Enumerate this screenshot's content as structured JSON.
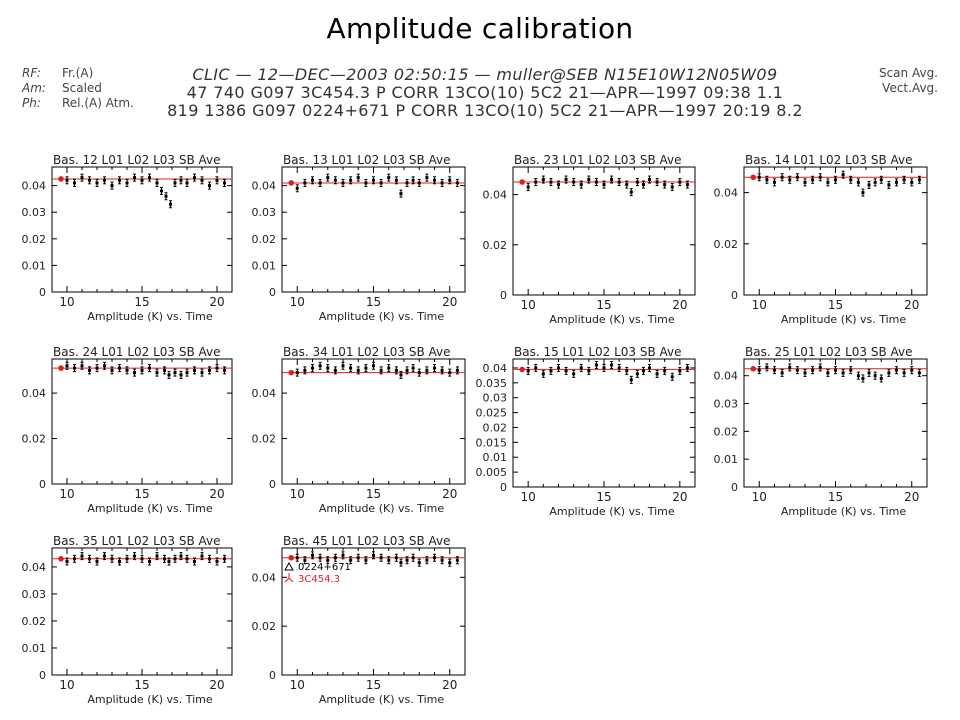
{
  "page": {
    "title": "Amplitude calibration"
  },
  "header": {
    "left": [
      {
        "key": "RF:",
        "value": "Fr.(A)"
      },
      {
        "key": "Am:",
        "value": "Scaled"
      },
      {
        "key": "Ph:",
        "value": "Rel.(A) Atm."
      }
    ],
    "center": [
      "CLIC — 12—DEC—2003 02:50:15 — muller@SEB   N15E10W12N05W09",
      "47 740 G097 3C454.3 P CORR 13CO(10) 5C2 21—APR—1997 09:38 1.1",
      "819 1386 G097 0224+671 P CORR 13CO(10) 5C2 21—APR—1997 20:19 8.2"
    ],
    "right": [
      "Scan Avg.",
      "Vect.Avg."
    ]
  },
  "legend": [
    {
      "symbol": "triangle",
      "label": "0224+671",
      "color": "#000000"
    },
    {
      "symbol": "star",
      "label": "3C454.3",
      "color": "#e02020"
    }
  ],
  "colors": {
    "data": "#000000",
    "calibrator": "#e02020",
    "frame": "#000000"
  },
  "chart_data": [
    {
      "type": "scatter",
      "title": "Bas. 12 L01 L02 L03  SB Ave",
      "xlabel": "Amplitude (K)  vs.  Time",
      "xlim": [
        9,
        21
      ],
      "ylim": [
        0,
        0.047
      ],
      "xticks": [
        10,
        15,
        20
      ],
      "yticks": [
        0,
        0.01,
        0.02,
        0.03,
        0.04
      ],
      "yticklabels": [
        "0",
        "0.01",
        "0.02",
        "0.03",
        "0.04"
      ],
      "ref_y": 0.0425,
      "x": [
        10.0,
        10.5,
        11.0,
        11.5,
        12.0,
        12.5,
        13.0,
        13.5,
        14.0,
        14.5,
        15.0,
        15.5,
        16.0,
        16.3,
        16.6,
        16.9,
        17.2,
        17.6,
        18.0,
        18.5,
        19.0,
        19.5,
        20.0,
        20.5
      ],
      "y": [
        0.042,
        0.041,
        0.043,
        0.042,
        0.041,
        0.042,
        0.04,
        0.042,
        0.041,
        0.043,
        0.042,
        0.043,
        0.041,
        0.038,
        0.036,
        0.033,
        0.041,
        0.042,
        0.041,
        0.043,
        0.042,
        0.04,
        0.042,
        0.041
      ]
    },
    {
      "type": "scatter",
      "title": "Bas. 13 L01 L02 L03  SB Ave",
      "xlabel": "Amplitude (K)  vs.  Time",
      "xlim": [
        9,
        21
      ],
      "ylim": [
        0,
        0.047
      ],
      "xticks": [
        10,
        15,
        20
      ],
      "yticks": [
        0,
        0.01,
        0.02,
        0.03,
        0.04
      ],
      "yticklabels": [
        "0",
        "0.01",
        "0.02",
        "0.03",
        "0.04"
      ],
      "ref_y": 0.041,
      "x": [
        10.0,
        10.5,
        11.0,
        11.5,
        12.0,
        12.5,
        13.0,
        13.5,
        14.0,
        14.5,
        15.0,
        15.5,
        16.0,
        16.5,
        16.8,
        17.2,
        17.6,
        18.0,
        18.5,
        19.0,
        19.5,
        20.0,
        20.5
      ],
      "y": [
        0.039,
        0.041,
        0.042,
        0.041,
        0.043,
        0.042,
        0.041,
        0.042,
        0.043,
        0.041,
        0.042,
        0.041,
        0.043,
        0.042,
        0.037,
        0.041,
        0.042,
        0.041,
        0.043,
        0.042,
        0.041,
        0.042,
        0.041
      ]
    },
    {
      "type": "scatter",
      "title": "Bas. 23 L01 L02 L03  SB Ave",
      "xlabel": "Amplitude (K)  vs.  Time",
      "xlim": [
        9,
        21
      ],
      "ylim": [
        0,
        0.051
      ],
      "xticks": [
        10,
        15,
        20
      ],
      "yticks": [
        0,
        0.02,
        0.04
      ],
      "yticklabels": [
        "0",
        "0.02",
        "0.04"
      ],
      "ref_y": 0.045,
      "x": [
        10.0,
        10.5,
        11.0,
        11.5,
        12.0,
        12.5,
        13.0,
        13.5,
        14.0,
        14.5,
        15.0,
        15.5,
        16.0,
        16.5,
        16.8,
        17.2,
        17.6,
        18.0,
        18.5,
        19.0,
        19.5,
        20.0,
        20.5
      ],
      "y": [
        0.043,
        0.045,
        0.046,
        0.045,
        0.044,
        0.046,
        0.045,
        0.044,
        0.046,
        0.045,
        0.044,
        0.046,
        0.045,
        0.044,
        0.041,
        0.045,
        0.044,
        0.046,
        0.045,
        0.044,
        0.043,
        0.045,
        0.044
      ]
    },
    {
      "type": "scatter",
      "title": "Bas. 14 L01 L02 L03  SB Ave",
      "xlabel": "Amplitude (K)  vs.  Time",
      "xlim": [
        9,
        21
      ],
      "ylim": [
        0,
        0.05
      ],
      "xticks": [
        10,
        15,
        20
      ],
      "yticks": [
        0,
        0.02,
        0.04
      ],
      "yticklabels": [
        "0",
        "0.02",
        "0.04"
      ],
      "ref_y": 0.046,
      "x": [
        10.0,
        10.5,
        11.0,
        11.5,
        12.0,
        12.5,
        13.0,
        13.5,
        14.0,
        14.5,
        15.0,
        15.5,
        16.0,
        16.5,
        16.8,
        17.2,
        17.6,
        18.0,
        18.5,
        19.0,
        19.5,
        20.0,
        20.5
      ],
      "y": [
        0.046,
        0.045,
        0.044,
        0.046,
        0.045,
        0.046,
        0.044,
        0.045,
        0.046,
        0.044,
        0.045,
        0.047,
        0.045,
        0.044,
        0.04,
        0.043,
        0.044,
        0.045,
        0.043,
        0.044,
        0.045,
        0.044,
        0.045
      ]
    },
    {
      "type": "scatter",
      "title": "Bas. 24 L01 L02 L03  SB Ave",
      "xlabel": "Amplitude (K)  vs.  Time",
      "xlim": [
        9,
        21
      ],
      "ylim": [
        0,
        0.055
      ],
      "xticks": [
        10,
        15,
        20
      ],
      "yticks": [
        0,
        0.02,
        0.04
      ],
      "yticklabels": [
        "0",
        "0.02",
        "0.04"
      ],
      "ref_y": 0.051,
      "x": [
        10.0,
        10.5,
        11.0,
        11.5,
        12.0,
        12.5,
        13.0,
        13.5,
        14.0,
        14.5,
        15.0,
        15.5,
        16.0,
        16.5,
        16.8,
        17.2,
        17.6,
        18.0,
        18.5,
        19.0,
        19.5,
        20.0,
        20.5
      ],
      "y": [
        0.052,
        0.051,
        0.052,
        0.05,
        0.051,
        0.052,
        0.05,
        0.051,
        0.05,
        0.049,
        0.05,
        0.051,
        0.049,
        0.05,
        0.048,
        0.049,
        0.048,
        0.049,
        0.05,
        0.049,
        0.05,
        0.051,
        0.05
      ]
    },
    {
      "type": "scatter",
      "title": "Bas. 34 L01 L02 L03  SB Ave",
      "xlabel": "Amplitude (K)  vs.  Time",
      "xlim": [
        9,
        21
      ],
      "ylim": [
        0,
        0.055
      ],
      "xticks": [
        10,
        15,
        20
      ],
      "yticks": [
        0,
        0.02,
        0.04
      ],
      "yticklabels": [
        "0",
        "0.02",
        "0.04"
      ],
      "ref_y": 0.049,
      "x": [
        10.0,
        10.5,
        11.0,
        11.5,
        12.0,
        12.5,
        13.0,
        13.5,
        14.0,
        14.5,
        15.0,
        15.5,
        16.0,
        16.5,
        16.8,
        17.2,
        17.6,
        18.0,
        18.5,
        19.0,
        19.5,
        20.0,
        20.5
      ],
      "y": [
        0.049,
        0.05,
        0.051,
        0.052,
        0.051,
        0.05,
        0.052,
        0.051,
        0.05,
        0.051,
        0.052,
        0.05,
        0.051,
        0.05,
        0.048,
        0.05,
        0.051,
        0.049,
        0.05,
        0.051,
        0.05,
        0.049,
        0.05
      ]
    },
    {
      "type": "scatter",
      "title": "Bas. 15 L01 L02 L03  SB Ave",
      "xlabel": "Amplitude (K)  vs.  Time",
      "xlim": [
        9,
        21
      ],
      "ylim": [
        0,
        0.043
      ],
      "xticks": [
        10,
        15,
        20
      ],
      "yticks": [
        0,
        0.005,
        0.01,
        0.015,
        0.02,
        0.025,
        0.03,
        0.035,
        0.04
      ],
      "yticklabels": [
        "0",
        "0.005",
        "0.01",
        "0.015",
        "0.02",
        "0.025",
        "0.03",
        "0.035",
        "0.04"
      ],
      "ref_y": 0.0395,
      "x": [
        10.0,
        10.5,
        11.0,
        11.5,
        12.0,
        12.5,
        13.0,
        13.5,
        14.0,
        14.5,
        15.0,
        15.5,
        16.0,
        16.5,
        16.8,
        17.2,
        17.6,
        18.0,
        18.5,
        19.0,
        19.5,
        20.0,
        20.5
      ],
      "y": [
        0.039,
        0.04,
        0.038,
        0.039,
        0.04,
        0.039,
        0.038,
        0.04,
        0.039,
        0.041,
        0.04,
        0.041,
        0.04,
        0.039,
        0.036,
        0.038,
        0.039,
        0.04,
        0.038,
        0.039,
        0.037,
        0.039,
        0.04
      ]
    },
    {
      "type": "scatter",
      "title": "Bas. 25 L01 L02 L03  SB Ave",
      "xlabel": "Amplitude (K)  vs.  Time",
      "xlim": [
        9,
        21
      ],
      "ylim": [
        0,
        0.046
      ],
      "xticks": [
        10,
        15,
        20
      ],
      "yticks": [
        0,
        0.01,
        0.02,
        0.03,
        0.04
      ],
      "yticklabels": [
        "0",
        "0.01",
        "0.02",
        "0.03",
        "0.04"
      ],
      "ref_y": 0.0425,
      "x": [
        10.0,
        10.5,
        11.0,
        11.5,
        12.0,
        12.5,
        13.0,
        13.5,
        14.0,
        14.5,
        15.0,
        15.5,
        16.0,
        16.5,
        16.8,
        17.2,
        17.6,
        18.0,
        18.5,
        19.0,
        19.5,
        20.0,
        20.5
      ],
      "y": [
        0.042,
        0.043,
        0.042,
        0.041,
        0.043,
        0.042,
        0.041,
        0.042,
        0.043,
        0.041,
        0.042,
        0.041,
        0.042,
        0.04,
        0.039,
        0.041,
        0.04,
        0.039,
        0.041,
        0.042,
        0.041,
        0.042,
        0.041
      ]
    },
    {
      "type": "scatter",
      "title": "Bas. 35 L01 L02 L03  SB Ave",
      "xlabel": "Amplitude (K)  vs.  Time",
      "xlim": [
        9,
        21
      ],
      "ylim": [
        0,
        0.047
      ],
      "xticks": [
        10,
        15,
        20
      ],
      "yticks": [
        0,
        0.01,
        0.02,
        0.03,
        0.04
      ],
      "yticklabels": [
        "0",
        "0.01",
        "0.02",
        "0.03",
        "0.04"
      ],
      "ref_y": 0.043,
      "x": [
        10.0,
        10.5,
        11.0,
        11.5,
        12.0,
        12.5,
        13.0,
        13.5,
        14.0,
        14.5,
        15.0,
        15.5,
        16.0,
        16.5,
        16.8,
        17.2,
        17.6,
        18.0,
        18.5,
        19.0,
        19.5,
        20.0,
        20.5
      ],
      "y": [
        0.042,
        0.043,
        0.044,
        0.043,
        0.042,
        0.044,
        0.043,
        0.042,
        0.043,
        0.044,
        0.043,
        0.042,
        0.044,
        0.043,
        0.042,
        0.043,
        0.044,
        0.043,
        0.042,
        0.044,
        0.043,
        0.042,
        0.043
      ]
    },
    {
      "type": "scatter",
      "title": "Bas. 45 L01 L02 L03  SB Ave",
      "xlabel": "Amplitude (K)  vs.  Time",
      "xlim": [
        9,
        21
      ],
      "ylim": [
        0,
        0.052
      ],
      "xticks": [
        10,
        15,
        20
      ],
      "yticks": [
        0,
        0.02,
        0.04
      ],
      "yticklabels": [
        "0",
        "0.02",
        "0.04"
      ],
      "ref_y": 0.048,
      "show_legend": true,
      "x": [
        10.0,
        10.5,
        11.0,
        11.5,
        12.0,
        12.5,
        13.0,
        13.5,
        14.0,
        14.5,
        15.0,
        15.5,
        16.0,
        16.5,
        16.8,
        17.2,
        17.6,
        18.0,
        18.5,
        19.0,
        19.5,
        20.0,
        20.5
      ],
      "y": [
        0.048,
        0.047,
        0.049,
        0.048,
        0.047,
        0.048,
        0.049,
        0.047,
        0.048,
        0.047,
        0.049,
        0.048,
        0.047,
        0.048,
        0.046,
        0.047,
        0.048,
        0.046,
        0.047,
        0.048,
        0.047,
        0.046,
        0.047
      ]
    }
  ]
}
